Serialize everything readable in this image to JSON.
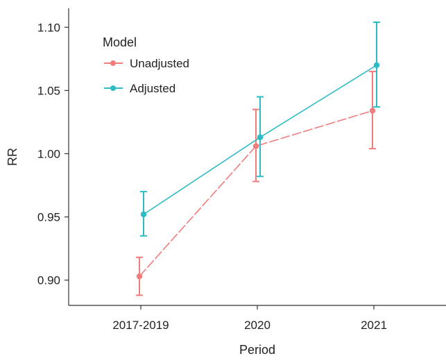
{
  "chart_data": {
    "type": "line",
    "title": "",
    "xlabel": "Period",
    "ylabel": "RR",
    "categories": [
      "2017-2019",
      "2020",
      "2021"
    ],
    "ylim": [
      0.88,
      1.115
    ],
    "yticks": [
      0.9,
      0.95,
      1.0,
      1.05,
      1.1
    ],
    "ytick_labels": [
      "0.90",
      "0.95",
      "1.00",
      "1.05",
      "1.10"
    ],
    "grid": false,
    "legend": {
      "title": "Model",
      "placement": "top-left"
    },
    "series": [
      {
        "name": "Unadjusted",
        "color": "#f07c7c",
        "line_style": "dashed",
        "values": [
          0.903,
          1.006,
          1.034
        ],
        "lower": [
          0.888,
          0.978,
          1.004
        ],
        "upper": [
          0.918,
          1.035,
          1.065
        ]
      },
      {
        "name": "Adjusted",
        "color": "#2ebcc4",
        "line_style": "solid",
        "values": [
          0.952,
          1.013,
          1.07
        ],
        "lower": [
          0.935,
          0.982,
          1.037
        ],
        "upper": [
          0.97,
          1.045,
          1.104
        ]
      }
    ]
  }
}
